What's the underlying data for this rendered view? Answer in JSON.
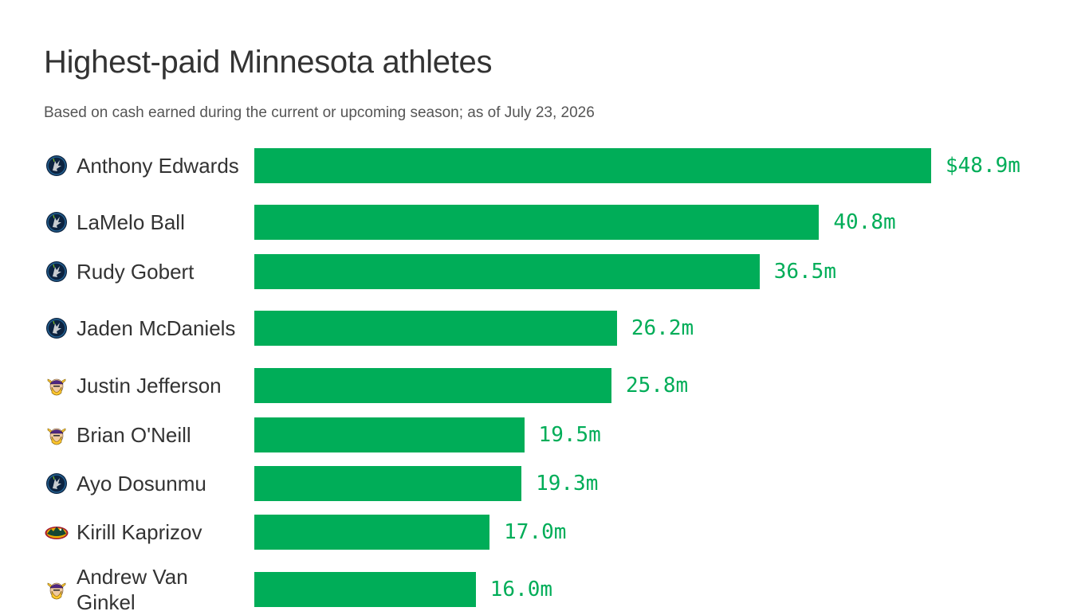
{
  "colors": {
    "bar": "#00ad58",
    "value_text": "#00ad58",
    "title_text": "#333333",
    "subtitle_text": "#555555",
    "timberwolves": "#0c2340",
    "vikings": "#4f2683",
    "vikings_gold": "#ffc62f",
    "wild": "#154734",
    "wild_red": "#a6192e"
  },
  "chart_data": {
    "type": "bar",
    "orientation": "horizontal",
    "title": "Highest-paid Minnesota athletes",
    "subtitle": "Based on cash earned during the current or upcoming season; as of July 23, 2026",
    "categories": [
      "Anthony Edwards",
      "LaMelo Ball",
      "Rudy Gobert",
      "Jaden McDaniels",
      "Justin Jefferson",
      "Brian O'Neill",
      "Ayo Dosunmu",
      "Kirill Kaprizov",
      "Andrew Van Ginkel"
    ],
    "values": [
      48.9,
      40.8,
      36.5,
      26.2,
      25.8,
      19.5,
      19.3,
      17.0,
      16.0
    ],
    "value_labels": [
      "$48.9m",
      "40.8m",
      "36.5m",
      "26.2m",
      "25.8m",
      "19.5m",
      "19.3m",
      "17.0m",
      "16.0m"
    ],
    "teams": [
      "timberwolves-icon",
      "timberwolves-icon",
      "timberwolves-icon",
      "timberwolves-icon",
      "vikings-icon",
      "vikings-icon",
      "timberwolves-icon",
      "wild-icon",
      "vikings-icon"
    ],
    "xlim": [
      0,
      48.9
    ],
    "grid": false,
    "legend": "none"
  }
}
